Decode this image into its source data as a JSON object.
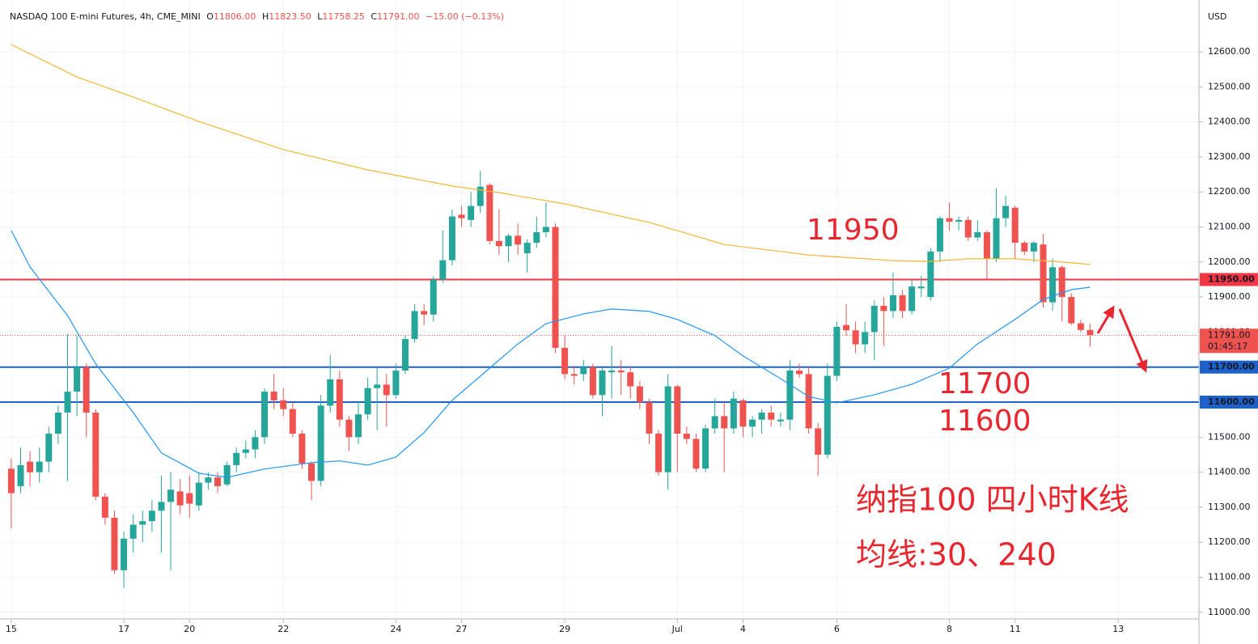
{
  "header": {
    "symbol": "NASDAQ 100 E-mini Futures, 4h, CME_MINI",
    "ohlc": [
      {
        "label": "O",
        "value": "11806.00"
      },
      {
        "label": "H",
        "value": "11823.50"
      },
      {
        "label": "L",
        "value": "11758.25"
      },
      {
        "label": "C",
        "value": "11791.00"
      }
    ],
    "change": "−15.00 (−0.13%)"
  },
  "chart_data": {
    "type": "candlestick",
    "currency": "USD",
    "up_color": "#26a69a",
    "down_color": "#ef5350",
    "xlim": [
      -1.2,
      126.6
    ],
    "ylim": [
      10981,
      12748
    ],
    "xticks": [
      {
        "value": 0,
        "label": "15"
      },
      {
        "value": 12,
        "label": "17"
      },
      {
        "value": 19,
        "label": "20"
      },
      {
        "value": 29,
        "label": "22"
      },
      {
        "value": 41,
        "label": "24"
      },
      {
        "value": 48,
        "label": "27"
      },
      {
        "value": 59,
        "label": "29"
      },
      {
        "value": 71,
        "label": "Jul"
      },
      {
        "value": 78,
        "label": "4"
      },
      {
        "value": 88,
        "label": "6"
      },
      {
        "value": 100,
        "label": "8"
      },
      {
        "value": 107,
        "label": "11"
      },
      {
        "value": 118,
        "label": "13"
      }
    ],
    "yticks": [
      {
        "value": 11000,
        "label": "11000.00"
      },
      {
        "value": 11100,
        "label": "11100.00"
      },
      {
        "value": 11200,
        "label": "11200.00"
      },
      {
        "value": 11300,
        "label": "11300.00"
      },
      {
        "value": 11400,
        "label": "11400.00"
      },
      {
        "value": 11500,
        "label": "11500.00"
      },
      {
        "value": 11600,
        "label": "11600.00"
      },
      {
        "value": 11700,
        "label": "11700.00"
      },
      {
        "value": 11800,
        "label": "11800.00"
      },
      {
        "value": 11900,
        "label": "11900.00"
      },
      {
        "value": 12000,
        "label": "12000.00"
      },
      {
        "value": 12100,
        "label": "12100.00"
      },
      {
        "value": 12200,
        "label": "12200.00"
      },
      {
        "value": 12300,
        "label": "12300.00"
      },
      {
        "value": 12400,
        "label": "12400.00"
      },
      {
        "value": 12500,
        "label": "12500.00"
      },
      {
        "value": 12600,
        "label": "12600.00"
      }
    ],
    "grid": true,
    "ohlc": [
      [
        11410,
        11440,
        11240,
        11340
      ],
      [
        11360,
        11470,
        11340,
        11420
      ],
      [
        11430,
        11460,
        11360,
        11400
      ],
      [
        11400,
        11470,
        11370,
        11430
      ],
      [
        11430,
        11530,
        11400,
        11510
      ],
      [
        11510,
        11590,
        11480,
        11570
      ],
      [
        11570,
        11795,
        11375,
        11630
      ],
      [
        11630,
        11790,
        11560,
        11700
      ],
      [
        11700,
        11710,
        11500,
        11570
      ],
      [
        11570,
        11580,
        11320,
        11330
      ],
      [
        11330,
        11340,
        11250,
        11270
      ],
      [
        11270,
        11290,
        11110,
        11120
      ],
      [
        11120,
        11230,
        11070,
        11210
      ],
      [
        11210,
        11280,
        11170,
        11250
      ],
      [
        11250,
        11290,
        11200,
        11260
      ],
      [
        11260,
        11320,
        11230,
        11290
      ],
      [
        11290,
        11390,
        11170,
        11315
      ],
      [
        11315,
        11400,
        11120,
        11350
      ],
      [
        11345,
        11380,
        11280,
        11305
      ],
      [
        11340,
        11390,
        11270,
        11310
      ],
      [
        11305,
        11400,
        11290,
        11370
      ],
      [
        11370,
        11400,
        11350,
        11385
      ],
      [
        11385,
        11400,
        11340,
        11360
      ],
      [
        11365,
        11430,
        11360,
        11420
      ],
      [
        11420,
        11470,
        11400,
        11455
      ],
      [
        11455,
        11490,
        11440,
        11465
      ],
      [
        11465,
        11520,
        11440,
        11500
      ],
      [
        11500,
        11640,
        11480,
        11630
      ],
      [
        11630,
        11680,
        11580,
        11605
      ],
      [
        11605,
        11640,
        11560,
        11580
      ],
      [
        11580,
        11600,
        11500,
        11510
      ],
      [
        11510,
        11520,
        11410,
        11425
      ],
      [
        11425,
        11430,
        11320,
        11375
      ],
      [
        11375,
        11620,
        11360,
        11590
      ],
      [
        11590,
        11735,
        11570,
        11665
      ],
      [
        11665,
        11690,
        11530,
        11550
      ],
      [
        11550,
        11560,
        11460,
        11500
      ],
      [
        11500,
        11600,
        11480,
        11565
      ],
      [
        11565,
        11670,
        11550,
        11640
      ],
      [
        11640,
        11700,
        11520,
        11650
      ],
      [
        11650,
        11680,
        11530,
        11620
      ],
      [
        11620,
        11710,
        11610,
        11690
      ],
      [
        11690,
        11790,
        11680,
        11780
      ],
      [
        11780,
        11880,
        11770,
        11860
      ],
      [
        11860,
        11880,
        11820,
        11850
      ],
      [
        11850,
        11960,
        11830,
        11950
      ],
      [
        11950,
        12090,
        11940,
        12005
      ],
      [
        12005,
        12150,
        11990,
        12130
      ],
      [
        12135,
        12160,
        12100,
        12125
      ],
      [
        12120,
        12200,
        12100,
        12160
      ],
      [
        12160,
        12260,
        12140,
        12215
      ],
      [
        12220,
        12225,
        12050,
        12060
      ],
      [
        12060,
        12150,
        12020,
        12045
      ],
      [
        12045,
        12080,
        12000,
        12075
      ],
      [
        12075,
        12110,
        12020,
        12050
      ],
      [
        12025,
        12065,
        11970,
        12055
      ],
      [
        12055,
        12130,
        12040,
        12085
      ],
      [
        12085,
        12170,
        12070,
        12100
      ],
      [
        12100,
        12110,
        11740,
        11755
      ],
      [
        11755,
        11790,
        11665,
        11680
      ],
      [
        11680,
        11700,
        11650,
        11675
      ],
      [
        11680,
        11720,
        11660,
        11700
      ],
      [
        11700,
        11710,
        11610,
        11620
      ],
      [
        11620,
        11700,
        11560,
        11690
      ],
      [
        11685,
        11760,
        11610,
        11690
      ],
      [
        11690,
        11720,
        11620,
        11685
      ],
      [
        11685,
        11700,
        11610,
        11645
      ],
      [
        11645,
        11660,
        11580,
        11600
      ],
      [
        11600,
        11610,
        11480,
        11510
      ],
      [
        11510,
        11520,
        11390,
        11400
      ],
      [
        11400,
        11680,
        11350,
        11645
      ],
      [
        11645,
        11650,
        11400,
        11510
      ],
      [
        11510,
        11530,
        11480,
        11495
      ],
      [
        11495,
        11510,
        11400,
        11410
      ],
      [
        11410,
        11535,
        11400,
        11525
      ],
      [
        11525,
        11610,
        11510,
        11560
      ],
      [
        11560,
        11600,
        11400,
        11525
      ],
      [
        11525,
        11630,
        11510,
        11610
      ],
      [
        11605,
        11610,
        11500,
        11530
      ],
      [
        11530,
        11560,
        11500,
        11550
      ],
      [
        11550,
        11580,
        11510,
        11570
      ],
      [
        11570,
        11590,
        11530,
        11550
      ],
      [
        11545,
        11570,
        11530,
        11550
      ],
      [
        11550,
        11720,
        11520,
        11690
      ],
      [
        11690,
        11710,
        11670,
        11680
      ],
      [
        11680,
        11700,
        11510,
        11525
      ],
      [
        11525,
        11540,
        11390,
        11450
      ],
      [
        11450,
        11710,
        11440,
        11675
      ],
      [
        11675,
        11830,
        11660,
        11815
      ],
      [
        11820,
        11880,
        11790,
        11805
      ],
      [
        11805,
        11830,
        11740,
        11765
      ],
      [
        11765,
        11830,
        11740,
        11800
      ],
      [
        11800,
        11890,
        11720,
        11875
      ],
      [
        11875,
        11900,
        11760,
        11860
      ],
      [
        11860,
        11970,
        11840,
        11905
      ],
      [
        11905,
        11920,
        11840,
        11860
      ],
      [
        11860,
        11950,
        11850,
        11930
      ],
      [
        11925,
        11960,
        11900,
        11930
      ],
      [
        11900,
        12040,
        11890,
        12030
      ],
      [
        12030,
        12130,
        12000,
        12125
      ],
      [
        12125,
        12170,
        12090,
        12115
      ],
      [
        12115,
        12130,
        12090,
        12120
      ],
      [
        12120,
        12130,
        12060,
        12070
      ],
      [
        12070,
        12120,
        12060,
        12085
      ],
      [
        12085,
        12090,
        11950,
        12010
      ],
      [
        12010,
        12210,
        12000,
        12125
      ],
      [
        12125,
        12190,
        12100,
        12160
      ],
      [
        12155,
        12160,
        12010,
        12055
      ],
      [
        12055,
        12060,
        12020,
        12030
      ],
      [
        12030,
        12060,
        12000,
        12055
      ],
      [
        12050,
        12080,
        11870,
        11885
      ],
      [
        11885,
        12010,
        11860,
        11985
      ],
      [
        11985,
        11990,
        11830,
        11900
      ],
      [
        11900,
        11910,
        11820,
        11825
      ],
      [
        11825,
        11835,
        11800,
        11806
      ],
      [
        11806,
        11823.5,
        11758.25,
        11791
      ]
    ],
    "series": [
      {
        "name": "MA 240",
        "color": "#f5b731",
        "x": [
          0,
          7,
          13,
          20,
          29,
          38,
          47,
          52,
          59,
          68,
          76,
          85,
          94,
          98,
          102,
          107,
          111,
          115
        ],
        "values": [
          12621,
          12528,
          12471,
          12401,
          12321,
          12263,
          12217,
          12198,
          12166,
          12113,
          12050,
          12020,
          12004,
          12002,
          12009,
          12009,
          12002,
          11993
        ]
      },
      {
        "name": "MA 30",
        "color": "#2196f3",
        "x": [
          0,
          2,
          6,
          9,
          13,
          16,
          20,
          23,
          27,
          32,
          35,
          38,
          41,
          44,
          47,
          51,
          54,
          57,
          61,
          64,
          68,
          71,
          75,
          78,
          82,
          85,
          88,
          92,
          96,
          100,
          103,
          107,
          110,
          113,
          115
        ],
        "values": [
          12090,
          11986,
          11847,
          11709,
          11570,
          11455,
          11397,
          11385,
          11409,
          11427,
          11432,
          11420,
          11443,
          11513,
          11605,
          11697,
          11766,
          11824,
          11852,
          11866,
          11859,
          11836,
          11790,
          11732,
          11667,
          11616,
          11598,
          11621,
          11651,
          11697,
          11766,
          11836,
          11893,
          11921,
          11928
        ]
      }
    ],
    "hlines": [
      {
        "value": 11950,
        "color": "#f23645",
        "label": "11950.00"
      },
      {
        "value": 11700,
        "color": "#1e62c9",
        "label": "11700.00"
      },
      {
        "value": 11600,
        "color": "#1e62c9",
        "label": "11600.00"
      }
    ],
    "last_price": {
      "value": 11791,
      "label": "11791.00",
      "countdown": "01:45:17",
      "color": "#ef5350"
    },
    "annotations": {
      "level_1": "11950",
      "level_2": "11700",
      "level_3": "11600",
      "title": "纳指100 四小时K线",
      "subtitle": "均线:30、240"
    }
  }
}
